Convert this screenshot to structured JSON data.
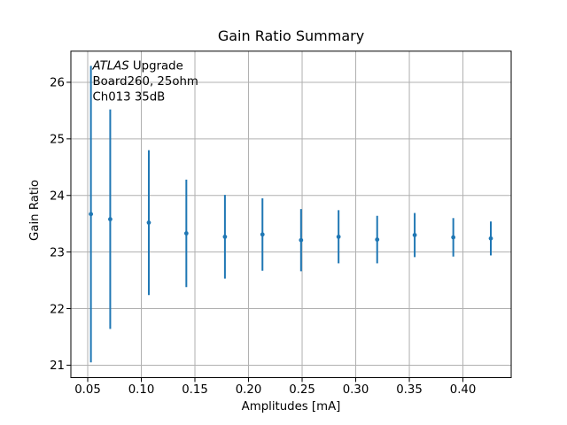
{
  "chart_data": {
    "type": "scatter",
    "error_bars": true,
    "title": "Gain Ratio Summary",
    "xlabel": "Amplitudes [mA]",
    "ylabel": "Gain Ratio",
    "x": [
      0.053,
      0.071,
      0.107,
      0.142,
      0.178,
      0.213,
      0.249,
      0.284,
      0.32,
      0.355,
      0.391,
      0.426
    ],
    "y": [
      23.67,
      23.58,
      23.52,
      23.33,
      23.27,
      23.31,
      23.21,
      23.27,
      23.22,
      23.3,
      23.26,
      23.24
    ],
    "yerr": [
      2.62,
      1.94,
      1.28,
      0.95,
      0.74,
      0.64,
      0.55,
      0.47,
      0.42,
      0.39,
      0.34,
      0.3
    ],
    "xlim": [
      0.0343,
      0.445
    ],
    "ylim": [
      20.78,
      26.55
    ],
    "xticks": [
      0.05,
      0.1,
      0.15,
      0.2,
      0.25,
      0.3,
      0.35,
      0.4
    ],
    "xtick_labels": [
      "0.05",
      "0.10",
      "0.15",
      "0.20",
      "0.25",
      "0.30",
      "0.35",
      "0.40"
    ],
    "yticks": [
      21,
      22,
      23,
      24,
      25,
      26
    ],
    "ytick_labels": [
      "21",
      "22",
      "23",
      "24",
      "25",
      "26"
    ],
    "grid": true,
    "legend": "none",
    "series_color": "#1f77b4",
    "grid_color": "#b0b0b0",
    "spine_color": "#000000",
    "annotation": {
      "line1_italic": "ATLAS",
      "line1_rest": " Upgrade",
      "line2": "Board260, 25ohm",
      "line3": "Ch013 35dB"
    }
  }
}
